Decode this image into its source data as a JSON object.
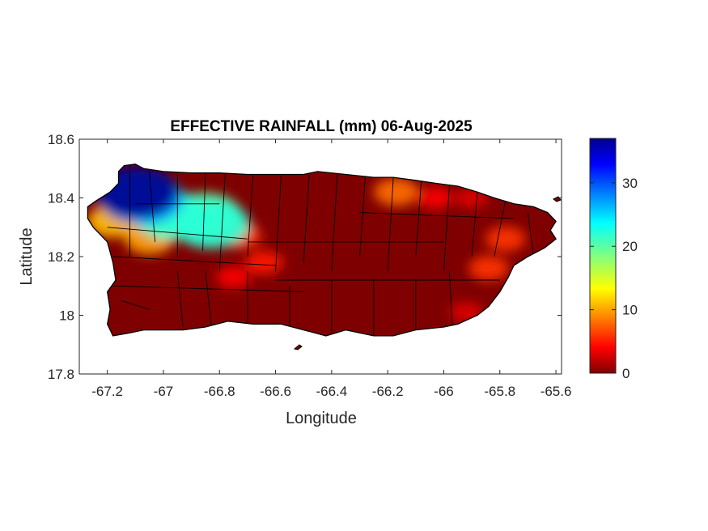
{
  "figure": {
    "title": "EFFECTIVE RAINFALL (mm) 06-Aug-2025",
    "xlabel": "Longitude",
    "ylabel": "Latitude"
  },
  "colors": {
    "land_base": "#7f0000",
    "border": "#000000",
    "colormap": "jet"
  },
  "axes": {
    "xlim": [
      -67.3,
      -65.58
    ],
    "ylim": [
      17.8,
      18.6
    ],
    "xticks": [
      -67.2,
      -67,
      -66.8,
      -66.6,
      -66.4,
      -66.2,
      -66,
      -65.8,
      -65.6
    ],
    "xtick_labels": [
      "-67.2",
      "-67",
      "-66.8",
      "-66.6",
      "-66.4",
      "-66.2",
      "-66",
      "-65.8",
      "-65.6"
    ],
    "yticks": [
      17.8,
      18,
      18.2,
      18.4,
      18.6
    ],
    "ytick_labels": [
      "17.8",
      "18",
      "18.2",
      "18.4",
      "18.6"
    ]
  },
  "colorbar": {
    "range": [
      0,
      37
    ],
    "ticks": [
      0,
      10,
      20,
      30
    ],
    "tick_labels": [
      "0",
      "10",
      "20",
      "30"
    ]
  },
  "chart_data": {
    "type": "heatmap",
    "title": "EFFECTIVE RAINFALL (mm) 06-Aug-2025",
    "xlabel": "Longitude",
    "ylabel": "Latitude",
    "xlim": [
      -67.3,
      -65.58
    ],
    "ylim": [
      17.8,
      18.6
    ],
    "grid": false,
    "colorbar_range": [
      0,
      37
    ],
    "background_value": 0,
    "hotspots": [
      {
        "lon": -67.1,
        "lat": 18.42,
        "value": 37
      },
      {
        "lon": -67.08,
        "lat": 18.4,
        "value": 28
      },
      {
        "lon": -66.97,
        "lat": 18.34,
        "value": 22
      },
      {
        "lon": -66.92,
        "lat": 18.33,
        "value": 18
      },
      {
        "lon": -66.83,
        "lat": 18.31,
        "value": 22
      },
      {
        "lon": -66.85,
        "lat": 18.34,
        "value": 20
      },
      {
        "lon": -67.18,
        "lat": 18.32,
        "value": 11
      },
      {
        "lon": -67.05,
        "lat": 18.26,
        "value": 10
      },
      {
        "lon": -66.72,
        "lat": 18.27,
        "value": 6
      },
      {
        "lon": -66.64,
        "lat": 18.18,
        "value": 5
      },
      {
        "lon": -66.75,
        "lat": 18.13,
        "value": 4
      },
      {
        "lon": -66.17,
        "lat": 18.42,
        "value": 8
      },
      {
        "lon": -66.03,
        "lat": 18.4,
        "value": 4
      },
      {
        "lon": -65.9,
        "lat": 18.4,
        "value": 3
      },
      {
        "lon": -65.78,
        "lat": 18.26,
        "value": 6
      },
      {
        "lon": -65.84,
        "lat": 18.16,
        "value": 6
      },
      {
        "lon": -65.92,
        "lat": 18.01,
        "value": 3
      }
    ]
  }
}
